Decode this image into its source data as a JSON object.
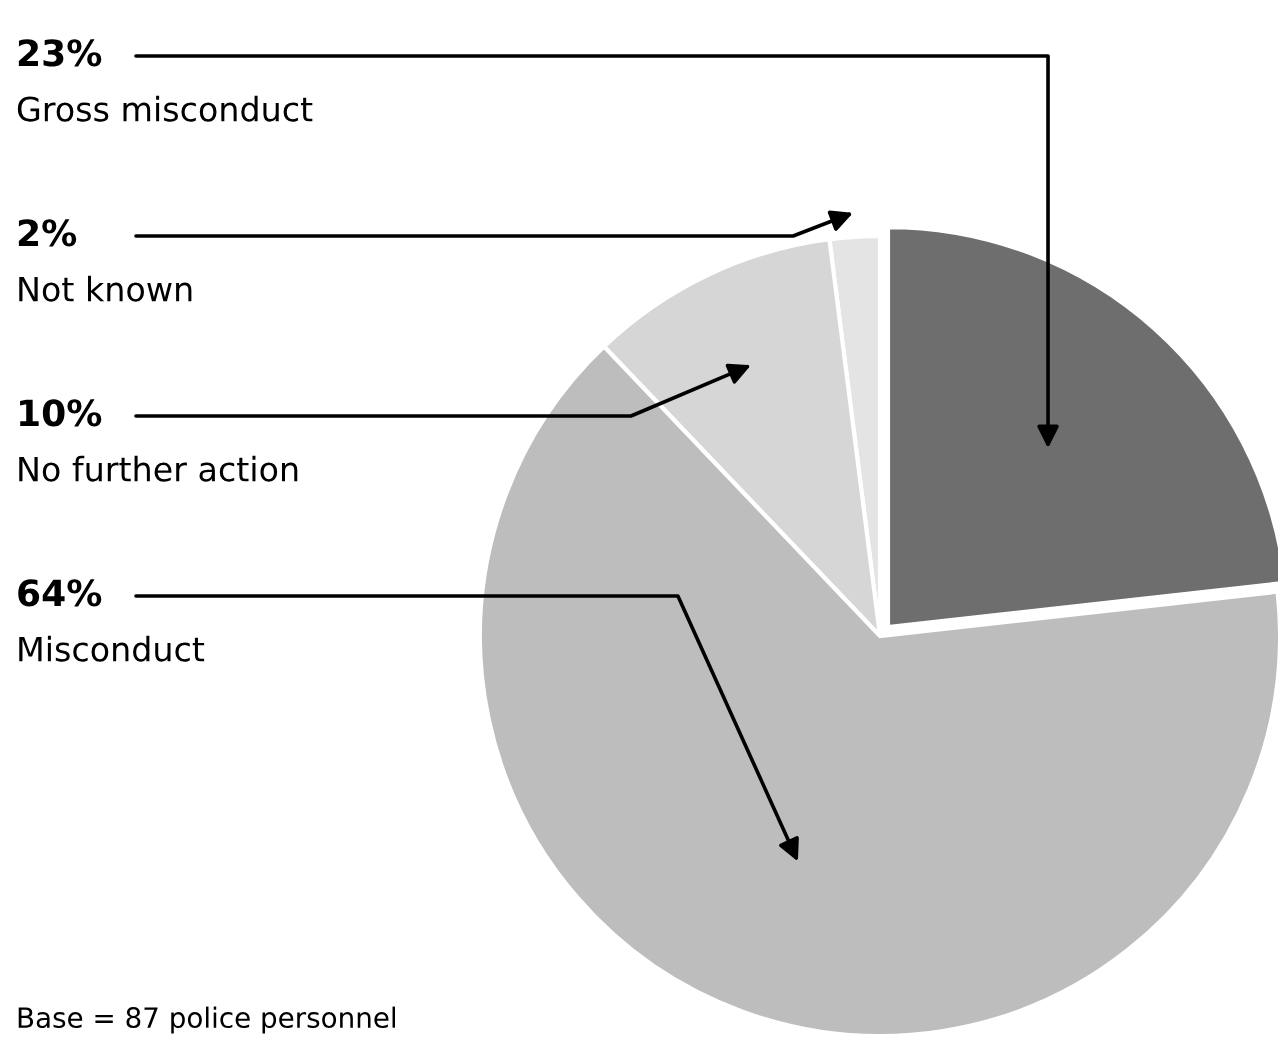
{
  "chart_data": {
    "type": "pie",
    "categories": [
      "Gross misconduct",
      "Not known",
      "No further action",
      "Misconduct"
    ],
    "values": [
      23,
      2,
      10,
      64
    ],
    "value_labels": [
      "23%",
      "2%",
      "10%",
      "64%"
    ],
    "colors": [
      "#6e6e6e",
      "#e4e4e4",
      "#d6d6d6",
      "#bdbdbd"
    ],
    "annotations": [
      "Base = 87 police personnel"
    ]
  }
}
